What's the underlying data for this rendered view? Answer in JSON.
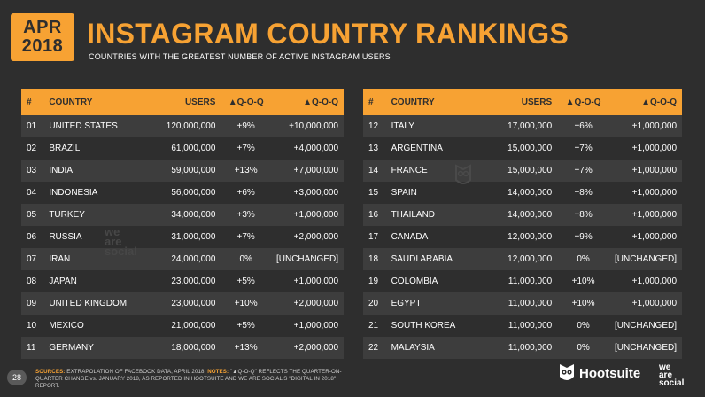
{
  "badge": {
    "month": "APR",
    "year": "2018"
  },
  "header": {
    "title": "INSTAGRAM COUNTRY RANKINGS",
    "subtitle": "COUNTRIES WITH THE GREATEST NUMBER OF ACTIVE INSTAGRAM USERS"
  },
  "columns": {
    "num": "#",
    "country": "COUNTRY",
    "users": "USERS",
    "pct_change": "▲Q-O-Q",
    "abs_change": "▲Q-O-Q"
  },
  "left_rows": [
    {
      "num": "01",
      "country": "UNITED STATES",
      "users": "120,000,000",
      "pct": "+9%",
      "abs": "+10,000,000"
    },
    {
      "num": "02",
      "country": "BRAZIL",
      "users": "61,000,000",
      "pct": "+7%",
      "abs": "+4,000,000"
    },
    {
      "num": "03",
      "country": "INDIA",
      "users": "59,000,000",
      "pct": "+13%",
      "abs": "+7,000,000"
    },
    {
      "num": "04",
      "country": "INDONESIA",
      "users": "56,000,000",
      "pct": "+6%",
      "abs": "+3,000,000"
    },
    {
      "num": "05",
      "country": "TURKEY",
      "users": "34,000,000",
      "pct": "+3%",
      "abs": "+1,000,000"
    },
    {
      "num": "06",
      "country": "RUSSIA",
      "users": "31,000,000",
      "pct": "+7%",
      "abs": "+2,000,000"
    },
    {
      "num": "07",
      "country": "IRAN",
      "users": "24,000,000",
      "pct": "0%",
      "abs": "[UNCHANGED]"
    },
    {
      "num": "08",
      "country": "JAPAN",
      "users": "23,000,000",
      "pct": "+5%",
      "abs": "+1,000,000"
    },
    {
      "num": "09",
      "country": "UNITED KINGDOM",
      "users": "23,000,000",
      "pct": "+10%",
      "abs": "+2,000,000"
    },
    {
      "num": "10",
      "country": "MEXICO",
      "users": "21,000,000",
      "pct": "+5%",
      "abs": "+1,000,000"
    },
    {
      "num": "11",
      "country": "GERMANY",
      "users": "18,000,000",
      "pct": "+13%",
      "abs": "+2,000,000"
    }
  ],
  "right_rows": [
    {
      "num": "12",
      "country": "ITALY",
      "users": "17,000,000",
      "pct": "+6%",
      "abs": "+1,000,000"
    },
    {
      "num": "13",
      "country": "ARGENTINA",
      "users": "15,000,000",
      "pct": "+7%",
      "abs": "+1,000,000"
    },
    {
      "num": "14",
      "country": "FRANCE",
      "users": "15,000,000",
      "pct": "+7%",
      "abs": "+1,000,000"
    },
    {
      "num": "15",
      "country": "SPAIN",
      "users": "14,000,000",
      "pct": "+8%",
      "abs": "+1,000,000"
    },
    {
      "num": "16",
      "country": "THAILAND",
      "users": "14,000,000",
      "pct": "+8%",
      "abs": "+1,000,000"
    },
    {
      "num": "17",
      "country": "CANADA",
      "users": "12,000,000",
      "pct": "+9%",
      "abs": "+1,000,000"
    },
    {
      "num": "18",
      "country": "SAUDI ARABIA",
      "users": "12,000,000",
      "pct": "0%",
      "abs": "[UNCHANGED]"
    },
    {
      "num": "19",
      "country": "COLOMBIA",
      "users": "11,000,000",
      "pct": "+10%",
      "abs": "+1,000,000"
    },
    {
      "num": "20",
      "country": "EGYPT",
      "users": "11,000,000",
      "pct": "+10%",
      "abs": "+1,000,000"
    },
    {
      "num": "21",
      "country": "SOUTH KOREA",
      "users": "11,000,000",
      "pct": "0%",
      "abs": "[UNCHANGED]"
    },
    {
      "num": "22",
      "country": "MALAYSIA",
      "users": "11,000,000",
      "pct": "0%",
      "abs": "[UNCHANGED]"
    }
  ],
  "watermark": {
    "line1": "we",
    "line2": "are",
    "line3": "social"
  },
  "footer": {
    "page_number": "28",
    "sources_label": "SOURCES:",
    "sources_text_1": " EXTRAPOLATION OF FACEBOOK DATA, APRIL 2018. ",
    "notes_label": "NOTES:",
    "sources_text_2": " \"▲Q-O-Q\" REFLECTS THE QUARTER-ON-QUARTER CHANGE vs. JANUARY 2018, AS REPORTED IN HOOTSUITE AND WE ARE SOCIAL'S \"DIGITAL IN 2018\" REPORT.",
    "hootsuite_label": "Hootsuite",
    "was_line1": "we",
    "was_line2": "are",
    "was_line3": "social"
  },
  "colors": {
    "accent": "#f7a233",
    "background": "#2e2e2e",
    "row_alt": "#3d3d3d"
  },
  "icons": {
    "owl": "hootsuite-owl-icon"
  }
}
